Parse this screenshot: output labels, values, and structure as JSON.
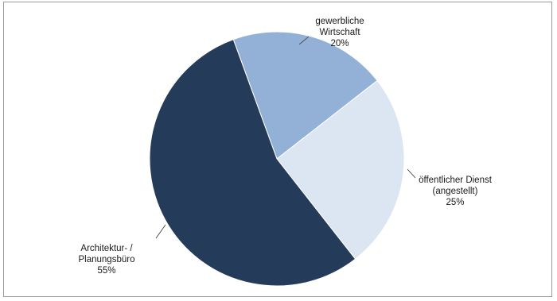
{
  "chart_data": {
    "type": "pie",
    "title": "",
    "slices": [
      {
        "label": [
          "gewerbliche",
          "Wirtschaft"
        ],
        "value": 20,
        "value_label": "20%",
        "color": "#93b1d6"
      },
      {
        "label": [
          "öffentlicher Dienst",
          "(angestellt)"
        ],
        "value": 25,
        "value_label": "25%",
        "color": "#dce6f2"
      },
      {
        "label": [
          "Architektur- /",
          "Planungsbüro"
        ],
        "value": 55,
        "value_label": "55%",
        "color": "#243b5a"
      }
    ],
    "start_angle_deg": -20,
    "direction": "clockwise",
    "legend": "none",
    "data_labels": "outside-with-leader-lines"
  }
}
